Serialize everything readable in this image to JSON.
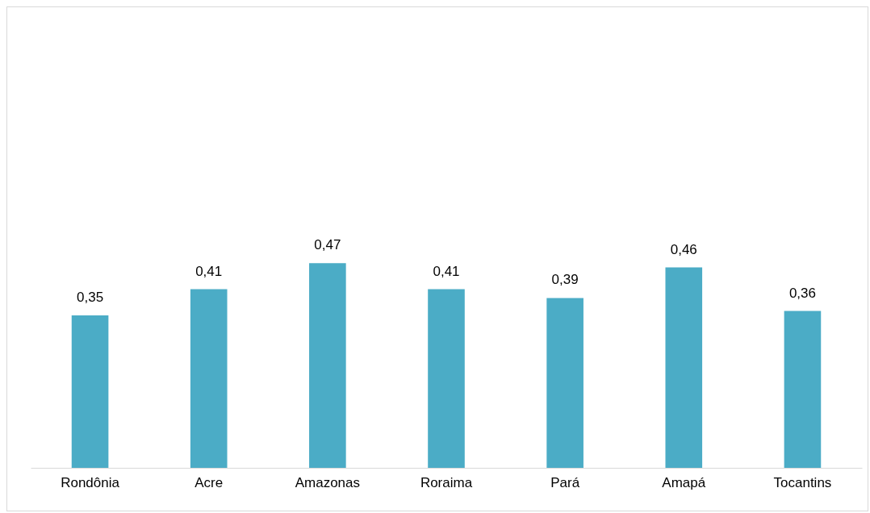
{
  "chart_data": {
    "type": "bar",
    "categories": [
      "Rondônia",
      "Acre",
      "Amazonas",
      "Roraima",
      "Pará",
      "Amapá",
      "Tocantins"
    ],
    "values": [
      0.35,
      0.41,
      0.47,
      0.41,
      0.39,
      0.46,
      0.36
    ],
    "value_labels": [
      "0,35",
      "0,41",
      "0,47",
      "0,41",
      "0,39",
      "0,46",
      "0,36"
    ],
    "color": "#4bacc6",
    "tick_labels": "x"
  }
}
